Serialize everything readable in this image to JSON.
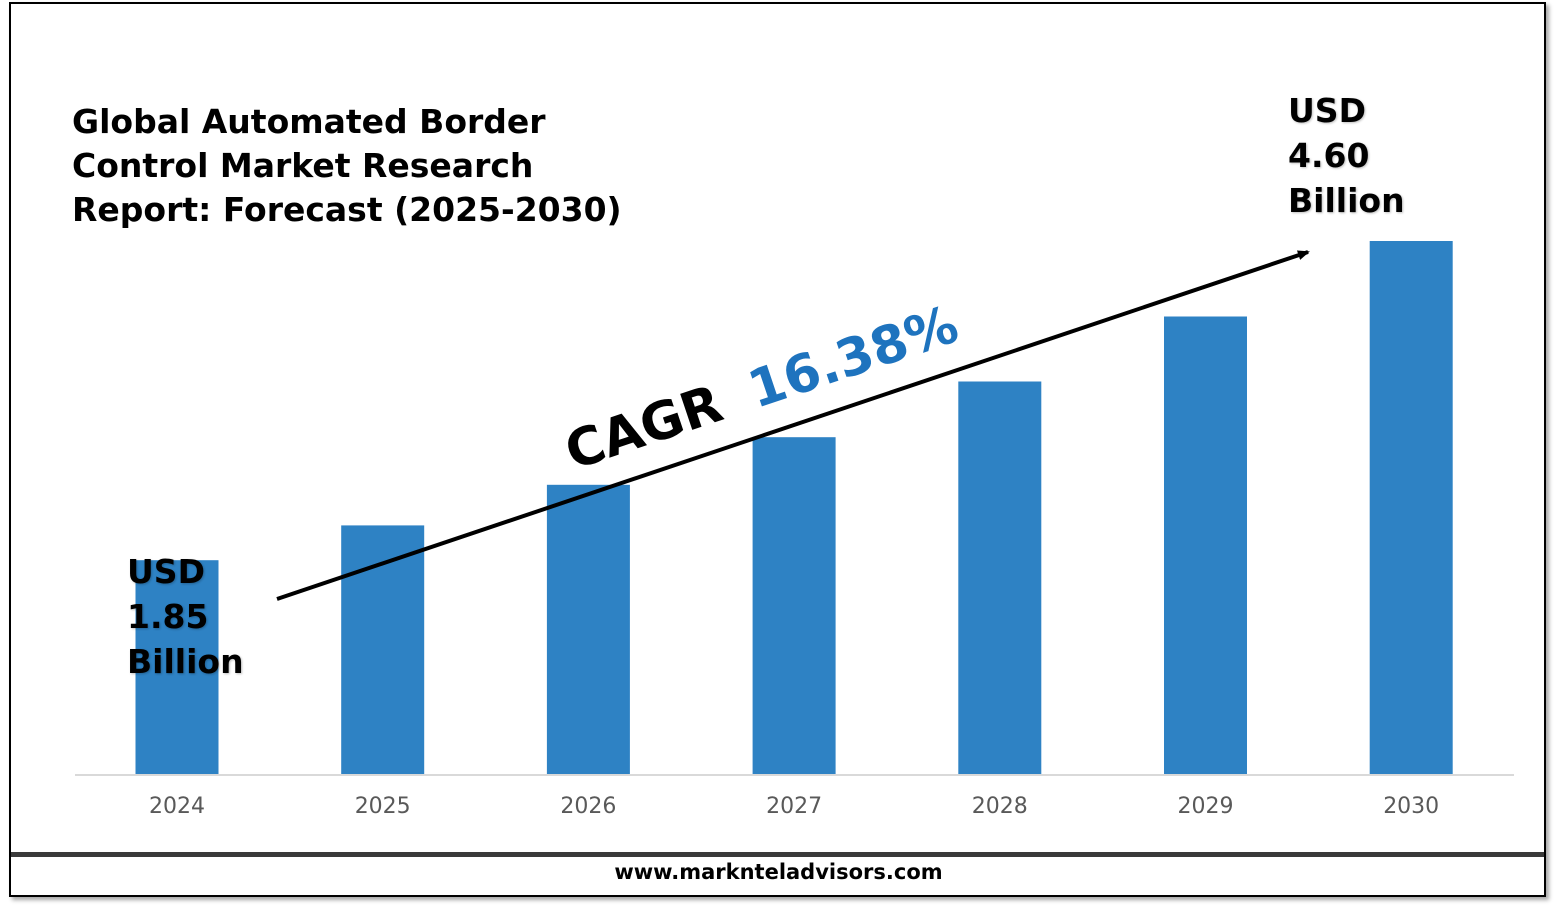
{
  "title_lines": [
    "Global Automated Border",
    "Control Market Research",
    "Report: Forecast (2025-2030)"
  ],
  "start_label": {
    "currency": "USD",
    "value": "1.85",
    "unit": "Billion"
  },
  "end_label": {
    "currency": "USD",
    "value": "4.60",
    "unit": "Billion"
  },
  "cagr": {
    "prefix": "CAGR",
    "value": "16.38%"
  },
  "footer": {
    "url": "www.marknteladvisors.com"
  },
  "colors": {
    "bar": "#2e82c4",
    "cagr_value": "#1e73be",
    "axis": "#d9d9d9",
    "tick_text": "#595959"
  },
  "chart_data": {
    "type": "bar",
    "categories": [
      "2024",
      "2025",
      "2026",
      "2027",
      "2028",
      "2029",
      "2030"
    ],
    "values": [
      1.85,
      2.15,
      2.5,
      2.91,
      3.39,
      3.95,
      4.6
    ],
    "title": "Global Automated Border Control Market Research Report: Forecast (2025-2030)",
    "xlabel": "",
    "ylabel": "",
    "ylim": [
      0,
      4.6
    ],
    "grid": false,
    "legend": "none",
    "annotations": [
      "USD 1.85 Billion",
      "USD 4.60 Billion",
      "CAGR 16.38%"
    ]
  }
}
